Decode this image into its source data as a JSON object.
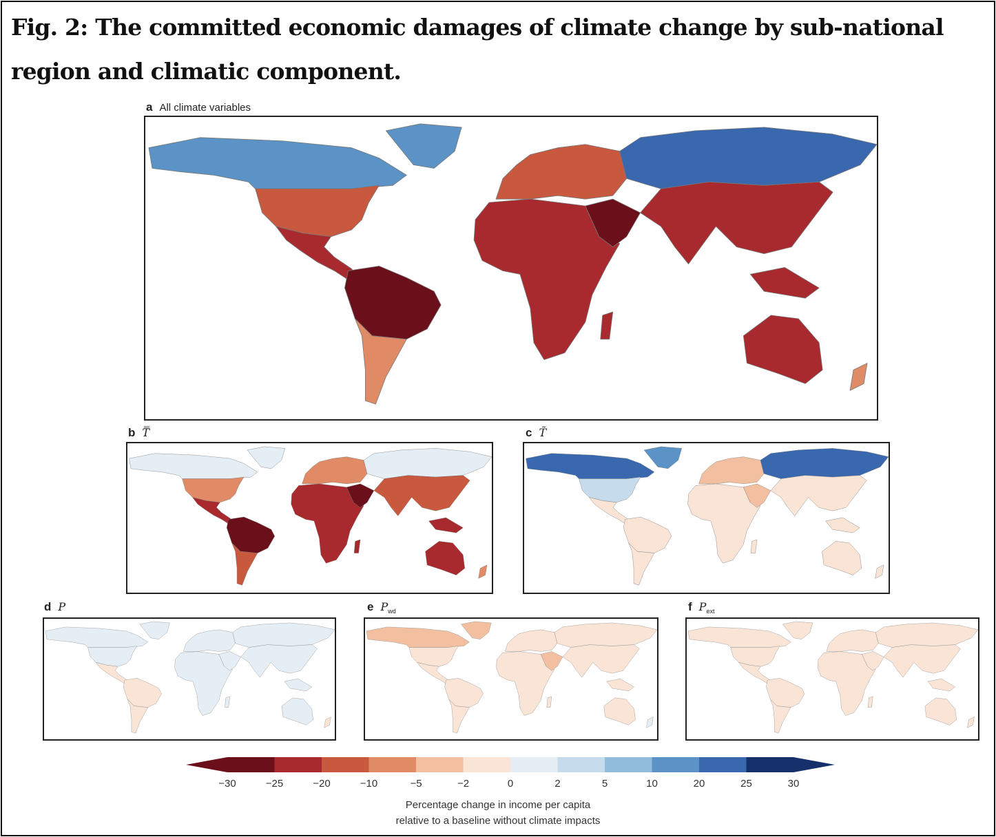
{
  "title": "Fig. 2: The committed economic damages of climate change by sub-national region and climatic component.",
  "panels": [
    {
      "letter": "a",
      "label": "All climate variables"
    },
    {
      "letter": "b",
      "label": "T̿"
    },
    {
      "letter": "c",
      "label": "T̃"
    },
    {
      "letter": "d",
      "label": "P"
    },
    {
      "letter": "e",
      "label": "P",
      "sub": "wd"
    },
    {
      "letter": "f",
      "label": "P",
      "sub": "ext"
    }
  ],
  "colorbar": {
    "ticks": [
      "−30",
      "−25",
      "−20",
      "−10",
      "−5",
      "−2",
      "0",
      "2",
      "5",
      "10",
      "20",
      "25",
      "30"
    ],
    "colors": [
      "#6b0f1a",
      "#a82a2e",
      "#c8593f",
      "#e08a66",
      "#f2c0a0",
      "#f9e4d6",
      "#e6eef5",
      "#c6dbec",
      "#92bcdc",
      "#5b93c6",
      "#3a68ae",
      "#15306a"
    ],
    "caption_line1": "Percentage change in income per capita",
    "caption_line2": "relative to a baseline without climate impacts"
  }
}
